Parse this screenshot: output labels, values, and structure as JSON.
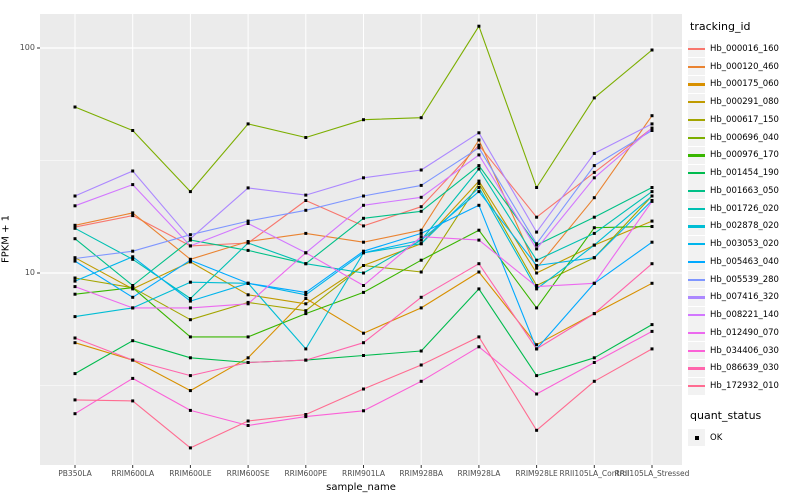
{
  "figure": {
    "y_axis_title": "FPKM + 1",
    "x_axis_title": "sample_name",
    "legend_title": "tracking_id",
    "quant_legend_title": "quant_status",
    "quant_status_value": "OK"
  },
  "colors": {
    "panel_background": "#EBEBEB",
    "gridline": "#FFFFFF",
    "axis_text": "#4D4D4D",
    "tick_mark": "#333333",
    "legend_key_background": "#F2F2F2",
    "point_marker": "#000000",
    "figure_background": "#FFFFFF"
  },
  "chart_data": {
    "type": "line",
    "title": "",
    "xlabel": "sample_name",
    "ylabel": "FPKM + 1",
    "y_scale": "log10",
    "y_ticks": [
      100,
      10
    ],
    "ylim": [
      1.4,
      142
    ],
    "grid": true,
    "legend_position": "right",
    "legend_title": "tracking_id",
    "point_shape": "small black square (quant_status = OK)",
    "categories": [
      "PB350LA",
      "RRIM600LA",
      "RRIM600LE",
      "RRIM600SE",
      "RRIM600PE",
      "RRIM901LA",
      "RRIM928BA",
      "RRIM928LA",
      "RRIM928LE",
      "RRII105LA_Control",
      "RRII105LA_Stressed"
    ],
    "series": [
      {
        "name": "Hb_000016_160",
        "color": "#F8766D",
        "values": [
          16.0,
          18.0,
          13.2,
          13.6,
          21.0,
          16.2,
          19.7,
          37,
          17.7,
          28,
          44
        ]
      },
      {
        "name": "Hb_000120_460",
        "color": "#EA8331",
        "values": [
          16.3,
          18.5,
          11.5,
          13.8,
          15.0,
          13.7,
          15.5,
          39,
          10.5,
          21.6,
          50
        ]
      },
      {
        "name": "Hb_000175_060",
        "color": "#D89000",
        "values": [
          4.9,
          4.1,
          3.0,
          4.2,
          7.7,
          5.4,
          7.0,
          10.1,
          4.8,
          6.6,
          9.0
        ]
      },
      {
        "name": "Hb_000291_080",
        "color": "#C09B00",
        "values": [
          11.7,
          8.5,
          11.2,
          8.0,
          7.3,
          10.8,
          13.5,
          25.6,
          10.0,
          13.3,
          17.0
        ]
      },
      {
        "name": "Hb_000617_150",
        "color": "#A3A500",
        "values": [
          9.5,
          8.6,
          6.2,
          7.4,
          6.8,
          10.8,
          10.1,
          25.0,
          8.8,
          11.7,
          22.0
        ]
      },
      {
        "name": "Hb_000696_040",
        "color": "#7CAE00",
        "values": [
          54.7,
          43,
          23,
          46,
          40,
          48,
          49,
          125,
          24,
          60,
          98
        ]
      },
      {
        "name": "Hb_000976_170",
        "color": "#39B600",
        "values": [
          8.05,
          8.6,
          5.2,
          5.2,
          6.6,
          8.2,
          11.4,
          15.5,
          7.0,
          15.9,
          16.1
        ]
      },
      {
        "name": "Hb_001454_190",
        "color": "#00BB4E",
        "values": [
          3.57,
          5.0,
          4.2,
          4.0,
          4.1,
          4.3,
          4.5,
          8.5,
          3.5,
          4.2,
          5.9
        ]
      },
      {
        "name": "Hb_001663_050",
        "color": "#00C087",
        "values": [
          14.2,
          8.8,
          14.0,
          12.6,
          11.0,
          17.5,
          18.8,
          30,
          13.3,
          17.7,
          24
        ]
      },
      {
        "name": "Hb_001726_020",
        "color": "#00C0B2",
        "values": [
          15.8,
          11.5,
          7.7,
          13.6,
          11.0,
          10.0,
          14.0,
          29,
          11.4,
          15.0,
          23
        ]
      },
      {
        "name": "Hb_002878_020",
        "color": "#00BDD4",
        "values": [
          6.4,
          7.0,
          9.1,
          9.0,
          4.6,
          12.3,
          13.5,
          24,
          8.5,
          13.3,
          22
        ]
      },
      {
        "name": "Hb_003053_020",
        "color": "#00B5EC",
        "values": [
          9.2,
          11.8,
          7.5,
          9.0,
          8.0,
          12.3,
          14.0,
          23,
          10.8,
          11.7,
          21
        ]
      },
      {
        "name": "Hb_005463_040",
        "color": "#00A9FF",
        "values": [
          11.3,
          7.8,
          11.4,
          9.0,
          8.2,
          12.5,
          15.0,
          20,
          4.6,
          9.0,
          13.7
        ]
      },
      {
        "name": "Hb_005539_280",
        "color": "#7F96FF",
        "values": [
          11.6,
          12.5,
          14.8,
          17.0,
          19.0,
          22.0,
          24.5,
          36,
          13.5,
          30,
          43
        ]
      },
      {
        "name": "Hb_007416_320",
        "color": "#AC88FF",
        "values": [
          22,
          28.4,
          14.2,
          23.9,
          22.2,
          26.5,
          28.7,
          42,
          15.2,
          34,
          46
        ]
      },
      {
        "name": "Hb_008221_140",
        "color": "#D277FF",
        "values": [
          19.9,
          24.7,
          13.2,
          16.6,
          12.3,
          20.0,
          21.7,
          33.5,
          12.8,
          26.5,
          44
        ]
      },
      {
        "name": "Hb_012490_070",
        "color": "#EC69EF",
        "values": [
          8.7,
          7.0,
          7.0,
          7.3,
          12.3,
          8.8,
          14.5,
          14.0,
          8.7,
          9.0,
          20.8
        ]
      },
      {
        "name": "Hb_034406_030",
        "color": "#FB61D7",
        "values": [
          2.37,
          3.4,
          2.45,
          2.1,
          2.3,
          2.44,
          3.3,
          4.7,
          2.9,
          4.0,
          5.5
        ]
      },
      {
        "name": "Hb_086639_030",
        "color": "#FF65AC",
        "values": [
          5.14,
          4.1,
          3.5,
          4.0,
          4.1,
          4.9,
          7.8,
          11.0,
          4.6,
          6.6,
          11.0
        ]
      },
      {
        "name": "Hb_172932_010",
        "color": "#FF6C91",
        "values": [
          2.73,
          2.7,
          1.67,
          2.2,
          2.35,
          3.05,
          3.9,
          5.2,
          2.0,
          3.3,
          4.6
        ]
      }
    ]
  }
}
